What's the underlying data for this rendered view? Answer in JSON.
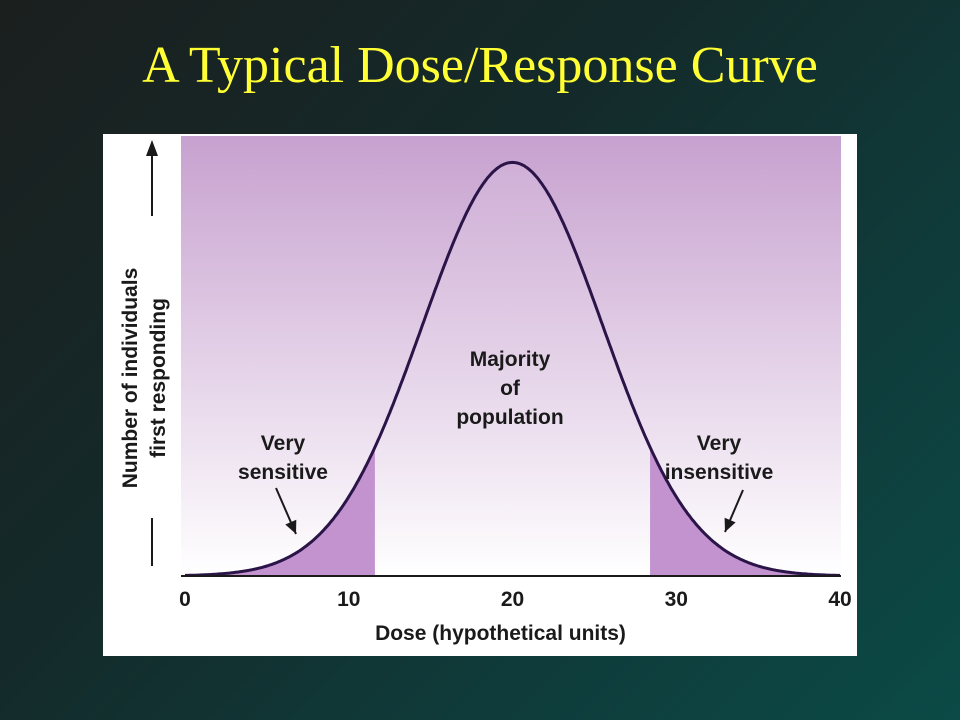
{
  "slide": {
    "title": "A Typical Dose/Response Curve"
  },
  "chart_data": {
    "type": "area",
    "title": "",
    "xlabel": "Dose (hypothetical units)",
    "ylabel": [
      "Number of individuals",
      "first responding"
    ],
    "xlim": [
      0,
      40
    ],
    "ylim": [
      0,
      1
    ],
    "x_ticks": [
      "0",
      "10",
      "20",
      "30",
      "40"
    ],
    "curve": {
      "distribution": "normal",
      "mean": 20,
      "sd": 5.5,
      "peak_relative": 0.94
    },
    "shaded_regions": [
      {
        "label_lines": [
          "Very",
          "sensitive"
        ],
        "x_from": 0,
        "x_to": 11.6
      },
      {
        "label_lines": [
          "Majority",
          "of",
          "population"
        ],
        "x_from": 11.6,
        "x_to": 28.4
      },
      {
        "label_lines": [
          "Very",
          "insensitive"
        ],
        "x_from": 28.4,
        "x_to": 40
      }
    ],
    "colors": {
      "background_top": "#c7a1cf",
      "background_bottom": "#ffffff",
      "tail_fill": "#c393cf",
      "curve": "#2a1448"
    }
  }
}
